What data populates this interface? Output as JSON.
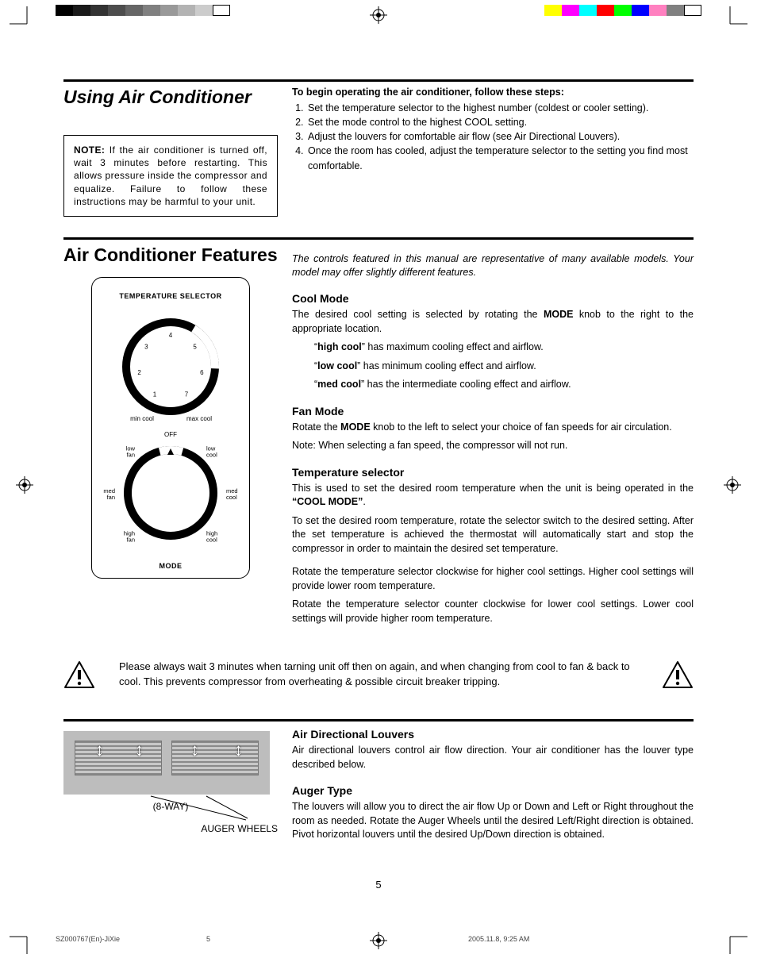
{
  "registration": {
    "gray_swatches": [
      "#000000",
      "#1a1a1a",
      "#333333",
      "#4d4d4d",
      "#666666",
      "#808080",
      "#999999",
      "#b3b3b3",
      "#cccccc",
      "#ffffff"
    ],
    "color_swatches": [
      "#ffff00",
      "#ff00ff",
      "#00ffff",
      "#ff0000",
      "#00ff00",
      "#0000ff",
      "#ff80c0",
      "#808080",
      "#ffffff"
    ]
  },
  "section1": {
    "title": "Using Air Conditioner",
    "note_label": "NOTE:",
    "note_text": " If the air conditioner is turned off, wait 3 minutes before restarting. This allows pressure inside the compressor and equalize. Failure to follow these instructions may be harmful to your unit.",
    "intro": "To begin operating the air conditioner, follow these steps:",
    "steps": [
      "Set the temperature selector to the highest number (coldest or cooler setting).",
      "Set the mode control to the highest COOL setting.",
      "Adjust the louvers for comfortable air flow (see Air Directional Louvers).",
      "Once the room has cooled, adjust the temperature selector to the setting you find most comfortable."
    ]
  },
  "section2": {
    "title": "Air Conditioner Features",
    "italic_note": "The controls featured in this manual are representative of many available models. Your model may offer slightly different features.",
    "panel": {
      "top_label": "TEMPERATURE SELECTOR",
      "dial_numbers": [
        "1",
        "2",
        "3",
        "4",
        "5",
        "6",
        "7"
      ],
      "dial_min": "min cool",
      "dial_max": "max cool",
      "mode_off": "OFF",
      "mode_labels_left": [
        "low fan",
        "med fan",
        "high fan"
      ],
      "mode_labels_right": [
        "low cool",
        "med cool",
        "high cool"
      ],
      "bottom_label": "MODE"
    },
    "cool_mode": {
      "heading": "Cool Mode",
      "p1a": "The desired cool setting is selected by rotating the ",
      "p1_bold": "MODE",
      "p1b": " knob to the right to the appropriate location.",
      "bullets": [
        {
          "pre": "“",
          "b": "high cool",
          "post": "” has maximum cooling effect and airflow."
        },
        {
          "pre": "“",
          "b": "low cool",
          "post": "” has minimum cooling effect and airflow."
        },
        {
          "pre": "“",
          "b": "med cool",
          "post": "” has the intermediate cooling effect and airflow."
        }
      ]
    },
    "fan_mode": {
      "heading": "Fan Mode",
      "p1a": "Rotate the ",
      "p1_bold": "MODE",
      "p1b": " knob to the left to select your choice of fan speeds for air circulation.",
      "p2": "Note: When selecting a fan speed, the compressor will not run."
    },
    "temp_sel": {
      "heading": "Temperature selector",
      "p1a": "This is used to set the desired room temperature when the unit is being operated in the ",
      "p1_bold": "“COOL MODE”",
      "p1b": ".",
      "p2": "To set the desired room temperature, rotate the selector switch to the desired setting. After the set temperature is achieved the thermostat will automatically start and stop the compressor in order to maintain the desired set temperature.",
      "p3": "Rotate the temperature selector clockwise for higher cool settings. Higher cool settings will provide lower room temperature.",
      "p4": "Rotate the temperature selector counter clockwise for lower cool settings. Lower cool settings will provide higher room temperature."
    }
  },
  "warning": "Please always wait 3 minutes when tarning unit off then on again, and when changing from cool to fan & back to cool. This prevents compressor from overheating & possible circuit breaker tripping.",
  "section3": {
    "louvers_heading": "Air Directional Louvers",
    "louvers_p": "Air directional louvers control air flow direction. Your air conditioner has the louver type described below.",
    "auger_heading": "Auger Type",
    "auger_p": "The louvers will allow you to direct the air flow Up or Down and Left or Right throughout the room as needed. Rotate the Auger Wheels until the desired Left/Right direction is obtained. Pivot horizontal louvers until the desired Up/Down direction is obtained.",
    "caption_8way": "(8-WAY)",
    "caption_auger": "AUGER WHEELS"
  },
  "page_number": "5",
  "footer": {
    "doc_id": "SZ000767(En)-JiXie",
    "page": "5",
    "timestamp": "2005.11.8, 9:25 AM"
  }
}
